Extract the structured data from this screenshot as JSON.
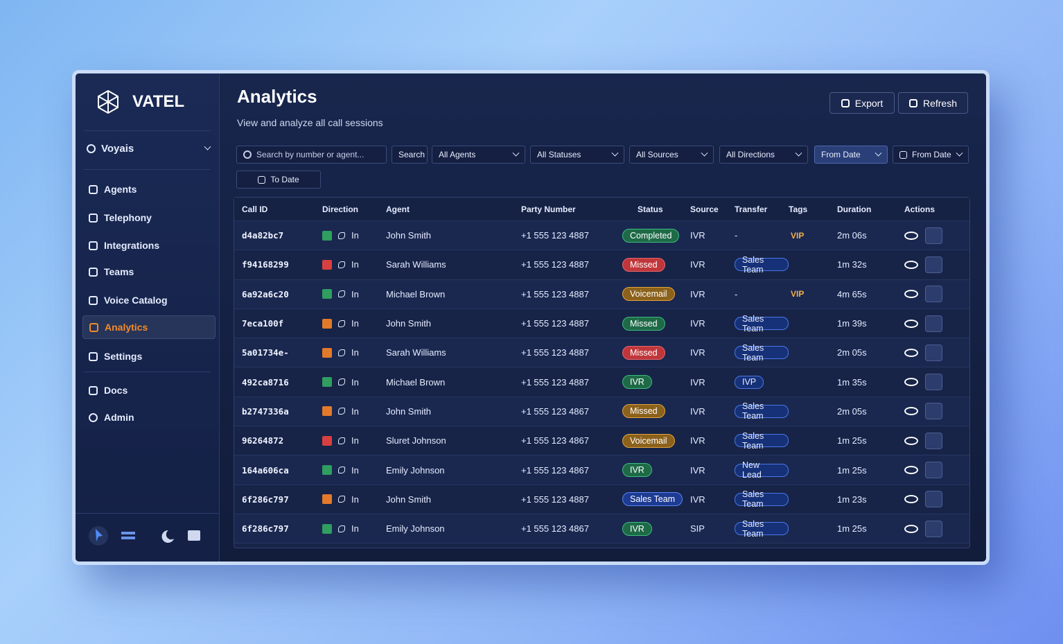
{
  "sidebar": {
    "brand": "VATEL",
    "user": "Voyais",
    "nav": [
      {
        "label": "Agents",
        "active": false
      },
      {
        "label": "Telephony",
        "active": false
      },
      {
        "label": "Integrations",
        "active": false
      },
      {
        "label": "Teams",
        "active": false
      },
      {
        "label": "Voice Catalog",
        "active": false
      },
      {
        "label": "Analytics",
        "active": true
      },
      {
        "label": "Settings",
        "active": false
      }
    ],
    "bottom_nav": [
      {
        "label": "Docs"
      },
      {
        "label": "Admin"
      }
    ]
  },
  "header": {
    "title": "Analytics",
    "subtitle": "View and analyze all call sessions",
    "buttons": [
      "Export",
      "Refresh"
    ]
  },
  "filters": {
    "search_placeholder": "Search by number or agent...",
    "search_button": "Search",
    "dropdowns": [
      "All Agents",
      "All Statuses",
      "All Sources",
      "All Directions"
    ],
    "dates": [
      {
        "label": "From Date",
        "highlighted": true
      },
      {
        "label": "From Date",
        "highlighted": false
      },
      {
        "label": "To Date",
        "highlighted": false
      }
    ]
  },
  "table": {
    "columns": [
      "Call ID",
      "Direction",
      "Agent",
      "Party Number",
      "Status",
      "Source",
      "Transfer",
      "Tags",
      "Duration",
      "Actions"
    ],
    "rows": [
      {
        "call_id": "d4a82bc7",
        "icon_color": "green",
        "direction": "In",
        "agent": "John Smith",
        "party": "+1 555 123 4887",
        "status": "Completed",
        "status_tone": "green",
        "source": "IVR",
        "transfer": "-",
        "tag": "VIP",
        "duration": "2m 06s"
      },
      {
        "call_id": "f94168299",
        "icon_color": "red",
        "direction": "In",
        "agent": "Sarah Williams",
        "party": "+1 555 123 4887",
        "status": "Missed",
        "status_tone": "red",
        "source": "IVR",
        "transfer": "Sales Team",
        "tag": null,
        "duration": "1m 32s"
      },
      {
        "call_id": "6a92a6c20",
        "icon_color": "green",
        "direction": "In",
        "agent": "Michael Brown",
        "party": "+1 555 123 4887",
        "status": "Voicemail",
        "status_tone": "orange",
        "source": "IVR",
        "transfer": "-",
        "tag": "VIP",
        "duration": "4m 65s"
      },
      {
        "call_id": "7eca100f",
        "icon_color": "orange",
        "direction": "In",
        "agent": "John Smith",
        "party": "+1 555 123 4887",
        "status": "Missed",
        "status_tone": "green",
        "source": "IVR",
        "transfer": "Sales Team",
        "tag": null,
        "duration": "1m 39s"
      },
      {
        "call_id": "5a01734e-",
        "icon_color": "orange",
        "direction": "In",
        "agent": "Sarah Williams",
        "party": "+1 555 123 4887",
        "status": "Missed",
        "status_tone": "red",
        "source": "IVR",
        "transfer": "Sales Team",
        "tag": null,
        "duration": "2m 05s"
      },
      {
        "call_id": "492ca8716",
        "icon_color": "green",
        "direction": "In",
        "agent": "Michael Brown",
        "party": "+1 555 123 4887",
        "status": "IVR",
        "status_tone": "green",
        "source": "IVR",
        "transfer": "IVP",
        "tag": null,
        "duration": "1m 35s"
      },
      {
        "call_id": "b2747336a",
        "icon_color": "orange",
        "direction": "In",
        "agent": "John Smith",
        "party": "+1 555 123 4867",
        "status": "Missed",
        "status_tone": "orange",
        "source": "IVR",
        "transfer": "Sales Team",
        "tag": null,
        "duration": "2m 05s"
      },
      {
        "call_id": "96264872",
        "icon_color": "red",
        "direction": "In",
        "agent": "Sluret Johnson",
        "party": "+1 555 123 4867",
        "status": "Voicemail",
        "status_tone": "orange",
        "source": "IVR",
        "transfer": "Sales Team",
        "tag": null,
        "duration": "1m 25s"
      },
      {
        "call_id": "164a606ca",
        "icon_color": "green",
        "direction": "In",
        "agent": "Emily Johnson",
        "party": "+1 555 123 4867",
        "status": "IVR",
        "status_tone": "green",
        "source": "IVR",
        "transfer": "New Lead",
        "tag": null,
        "duration": "1m 25s"
      },
      {
        "call_id": "6f286c797",
        "icon_color": "orange",
        "direction": "In",
        "agent": "John Smith",
        "party": "+1 555 123 4887",
        "status": "Sales Team",
        "status_tone": "blue",
        "source": "IVR",
        "transfer": "Sales Team",
        "tag": null,
        "duration": "1m 23s"
      },
      {
        "call_id": "6f286c797",
        "icon_color": "green",
        "direction": "In",
        "agent": "Emily Johnson",
        "party": "+1 555 123 4867",
        "status": "IVR",
        "status_tone": "green",
        "source": "SIP",
        "transfer": "Sales Team",
        "tag": null,
        "duration": "1m 25s"
      }
    ]
  }
}
